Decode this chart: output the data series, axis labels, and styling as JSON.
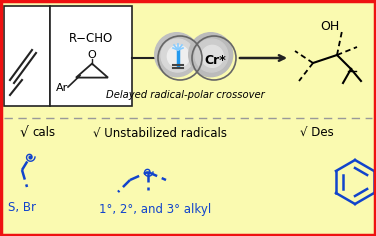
{
  "bg_color": "#FAFAB0",
  "border_color": "#EE1111",
  "box_border_color": "#222222",
  "arrow_color": "#222222",
  "blue_color": "#1144CC",
  "gray_light": "#D0D0D0",
  "gray_mid": "#B0B0B0",
  "gray_dark": "#888888",
  "white": "#FFFFFF",
  "title_text": "Delayed radical-polar crossover",
  "label_radicals": "√ Unstabilized radicals",
  "label_des": "√ Des",
  "label_s_br": "S, Br",
  "label_alkyl": "1°, 2°, and 3° alkyl",
  "label_cals": "cals",
  "r_cho": "R−CHO",
  "ar_text": "Ar",
  "cr_text": "Cr*",
  "oh_text": "OH",
  "figsize": [
    3.76,
    2.36
  ],
  "dpi": 100
}
